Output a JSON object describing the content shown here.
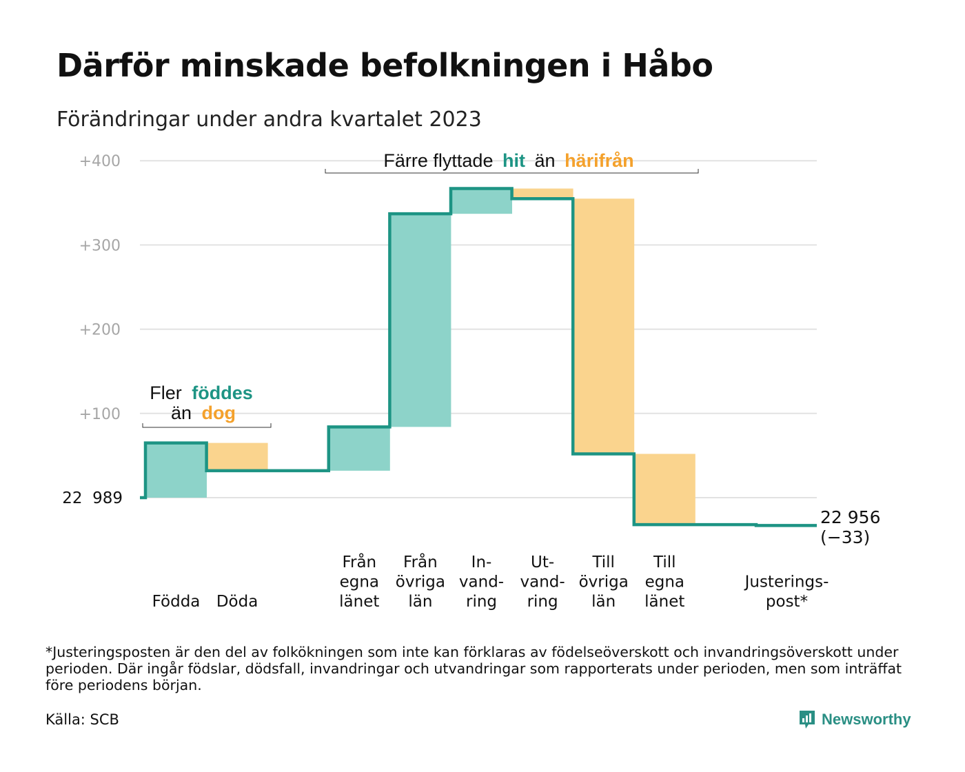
{
  "title": "Därför minskade befolkningen i Håbo",
  "subtitle": "Förändringar under andra kvartalet 2023",
  "footnote": "*Justeringsposten är den del av folkökningen som inte kan förklaras av födelseöverskott och invandringsöverskott under perioden. Där ingår födslar, dödsfall, invandringar och utvandringar som rapporterats under perioden, men som inträffat före periodens början.",
  "source": "Källa: SCB",
  "brand": "Newsworthy",
  "colors": {
    "increase": "#8dd3c9",
    "decrease": "#fad48e",
    "line": "#1d9484",
    "grid": "#e2e2e2",
    "tick": "#a6a6a6",
    "accent_teal": "#1d9484",
    "accent_orange": "#f4a12c"
  },
  "annotations": {
    "births": {
      "line1_a": "Fler",
      "line1_b": "föddes",
      "line2_a": "än",
      "line2_b": "dog"
    },
    "moves": {
      "a": "Färre flyttade",
      "b": "hit",
      "c": "än",
      "d": "härifrån"
    }
  },
  "chart_data": {
    "type": "waterfall",
    "title": "Därför minskade befolkningen i Håbo",
    "subtitle": "Förändringar under andra kvartalet 2023",
    "baseline_label": "22  989",
    "start_value": 22989,
    "end_label": "22 956",
    "end_change_label": "(−33)",
    "end_value": 22956,
    "ytick_labels": [
      "+100",
      "+200",
      "+300",
      "+400"
    ],
    "ytick_values": [
      100,
      200,
      300,
      400
    ],
    "ylim": [
      -50,
      410
    ],
    "grid": true,
    "bars": [
      {
        "label": [
          "Födda"
        ],
        "from": 0,
        "to": 65,
        "kind": "increase"
      },
      {
        "label": [
          "Döda"
        ],
        "from": 65,
        "to": 32,
        "kind": "decrease"
      },
      {
        "label": [
          "Från",
          "egna",
          "länet"
        ],
        "from": 32,
        "to": 84,
        "kind": "increase"
      },
      {
        "label": [
          "Från",
          "övriga",
          "län"
        ],
        "from": 84,
        "to": 337,
        "kind": "increase"
      },
      {
        "label": [
          "In-",
          "vand-",
          "ring"
        ],
        "from": 337,
        "to": 367,
        "kind": "increase"
      },
      {
        "label": [
          "Ut-",
          "vand-",
          "ring"
        ],
        "from": 367,
        "to": 355,
        "kind": "decrease"
      },
      {
        "label": [
          "Till",
          "övriga",
          "län"
        ],
        "from": 355,
        "to": 52,
        "kind": "decrease"
      },
      {
        "label": [
          "Till",
          "egna",
          "länet"
        ],
        "from": 52,
        "to": -32,
        "kind": "decrease"
      },
      {
        "label": [
          "Justerings-",
          "post*"
        ],
        "from": -32,
        "to": -33,
        "kind": "adjustment"
      }
    ]
  }
}
